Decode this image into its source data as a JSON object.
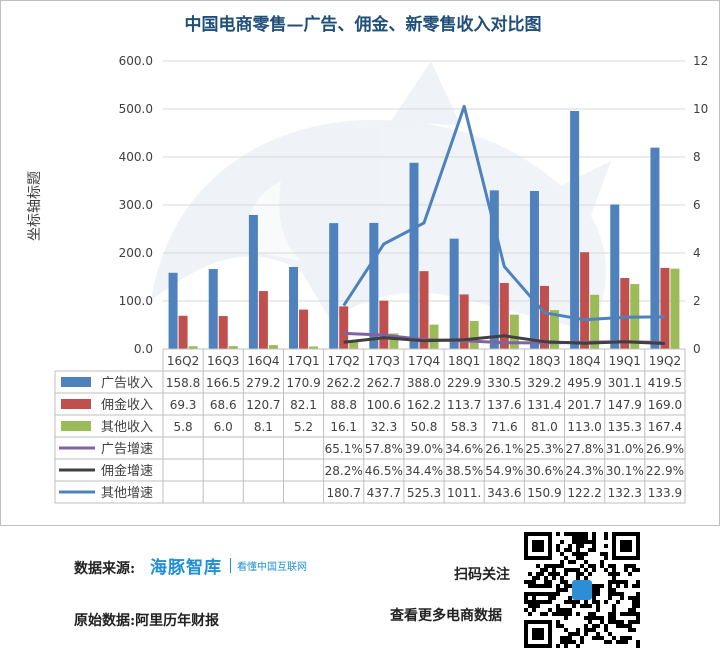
{
  "chart_data": {
    "type": "bar",
    "title": "中国电商零售—广告、佣金、新零售收入对比图",
    "ylabel": "坐标轴标题",
    "ylim": [
      0,
      600
    ],
    "y2lim": [
      0,
      12
    ],
    "y_ticks": [
      "0.0",
      "100.0",
      "200.0",
      "300.0",
      "400.0",
      "500.0",
      "600.0"
    ],
    "y2_ticks": [
      "0",
      "2",
      "4",
      "6",
      "8",
      "10",
      "12"
    ],
    "categories": [
      "16Q2",
      "16Q3",
      "16Q4",
      "17Q1",
      "17Q2",
      "17Q3",
      "17Q4",
      "18Q1",
      "18Q2",
      "18Q3",
      "18Q4",
      "19Q1",
      "19Q2"
    ],
    "bar_series": [
      {
        "name": "广告收入",
        "color": "#4f81bd",
        "values": [
          158.8,
          166.5,
          279.2,
          170.9,
          262.2,
          262.7,
          388.0,
          229.9,
          330.5,
          329.2,
          495.9,
          301.1,
          419.5
        ],
        "labels": [
          "158.8",
          "166.5",
          "279.2",
          "170.9",
          "262.2",
          "262.7",
          "388.0",
          "229.9",
          "330.5",
          "329.2",
          "495.9",
          "301.1",
          "419.5"
        ]
      },
      {
        "name": "佣金收入",
        "color": "#c0504d",
        "values": [
          69.3,
          68.6,
          120.7,
          82.1,
          88.8,
          100.6,
          162.2,
          113.7,
          137.6,
          131.4,
          201.7,
          147.9,
          169.0
        ],
        "labels": [
          "69.3",
          "68.6",
          "120.7",
          "82.1",
          "88.8",
          "100.6",
          "162.2",
          "113.7",
          "137.6",
          "131.4",
          "201.7",
          "147.9",
          "169.0"
        ]
      },
      {
        "name": "其他收入",
        "color": "#9bbb59",
        "values": [
          5.8,
          6.0,
          8.1,
          5.2,
          16.1,
          32.3,
          50.8,
          58.3,
          71.6,
          81.0,
          113.0,
          135.3,
          167.4
        ],
        "labels": [
          "5.8",
          "6.0",
          "8.1",
          "5.2",
          "16.1",
          "32.3",
          "50.8",
          "58.3",
          "71.6",
          "81.0",
          "113.0",
          "135.3",
          "167.4"
        ]
      }
    ],
    "line_series": [
      {
        "name": "广告增速",
        "color": "#8064a2",
        "values": [
          null,
          null,
          null,
          null,
          0.651,
          0.578,
          0.39,
          0.346,
          0.261,
          0.253,
          0.278,
          0.31,
          0.269
        ],
        "labels": [
          "",
          "",
          "",
          "",
          "65.1%",
          "57.8%",
          "39.0%",
          "34.6%",
          "26.1%",
          "25.3%",
          "27.8%",
          "31.0%",
          "26.9%"
        ]
      },
      {
        "name": "佣金增速",
        "color": "#404040",
        "values": [
          null,
          null,
          null,
          null,
          0.282,
          0.465,
          0.344,
          0.385,
          0.549,
          0.306,
          0.243,
          0.301,
          0.229
        ],
        "labels": [
          "",
          "",
          "",
          "",
          "28.2%",
          "46.5%",
          "34.4%",
          "38.5%",
          "54.9%",
          "30.6%",
          "24.3%",
          "30.1%",
          "22.9%"
        ]
      },
      {
        "name": "其他增速",
        "color": "#4f81bd",
        "values": [
          null,
          null,
          null,
          null,
          1.807,
          4.377,
          5.253,
          10.11,
          3.436,
          1.509,
          1.222,
          1.323,
          1.339
        ],
        "labels": [
          "",
          "",
          "",
          "",
          "180.7",
          "437.7",
          "525.3",
          "1011.",
          "343.6",
          "150.9",
          "122.2",
          "132.3",
          "133.9"
        ]
      }
    ],
    "grid": true,
    "legend": "data-table"
  },
  "footer": {
    "source_label": "数据来源:",
    "logo_main": "海豚智库",
    "logo_sub": "看懂中国互联网",
    "raw_label": "原始数据:阿里历年财报",
    "scan_label": "扫码关注",
    "more_label": "查看更多电商数据"
  }
}
